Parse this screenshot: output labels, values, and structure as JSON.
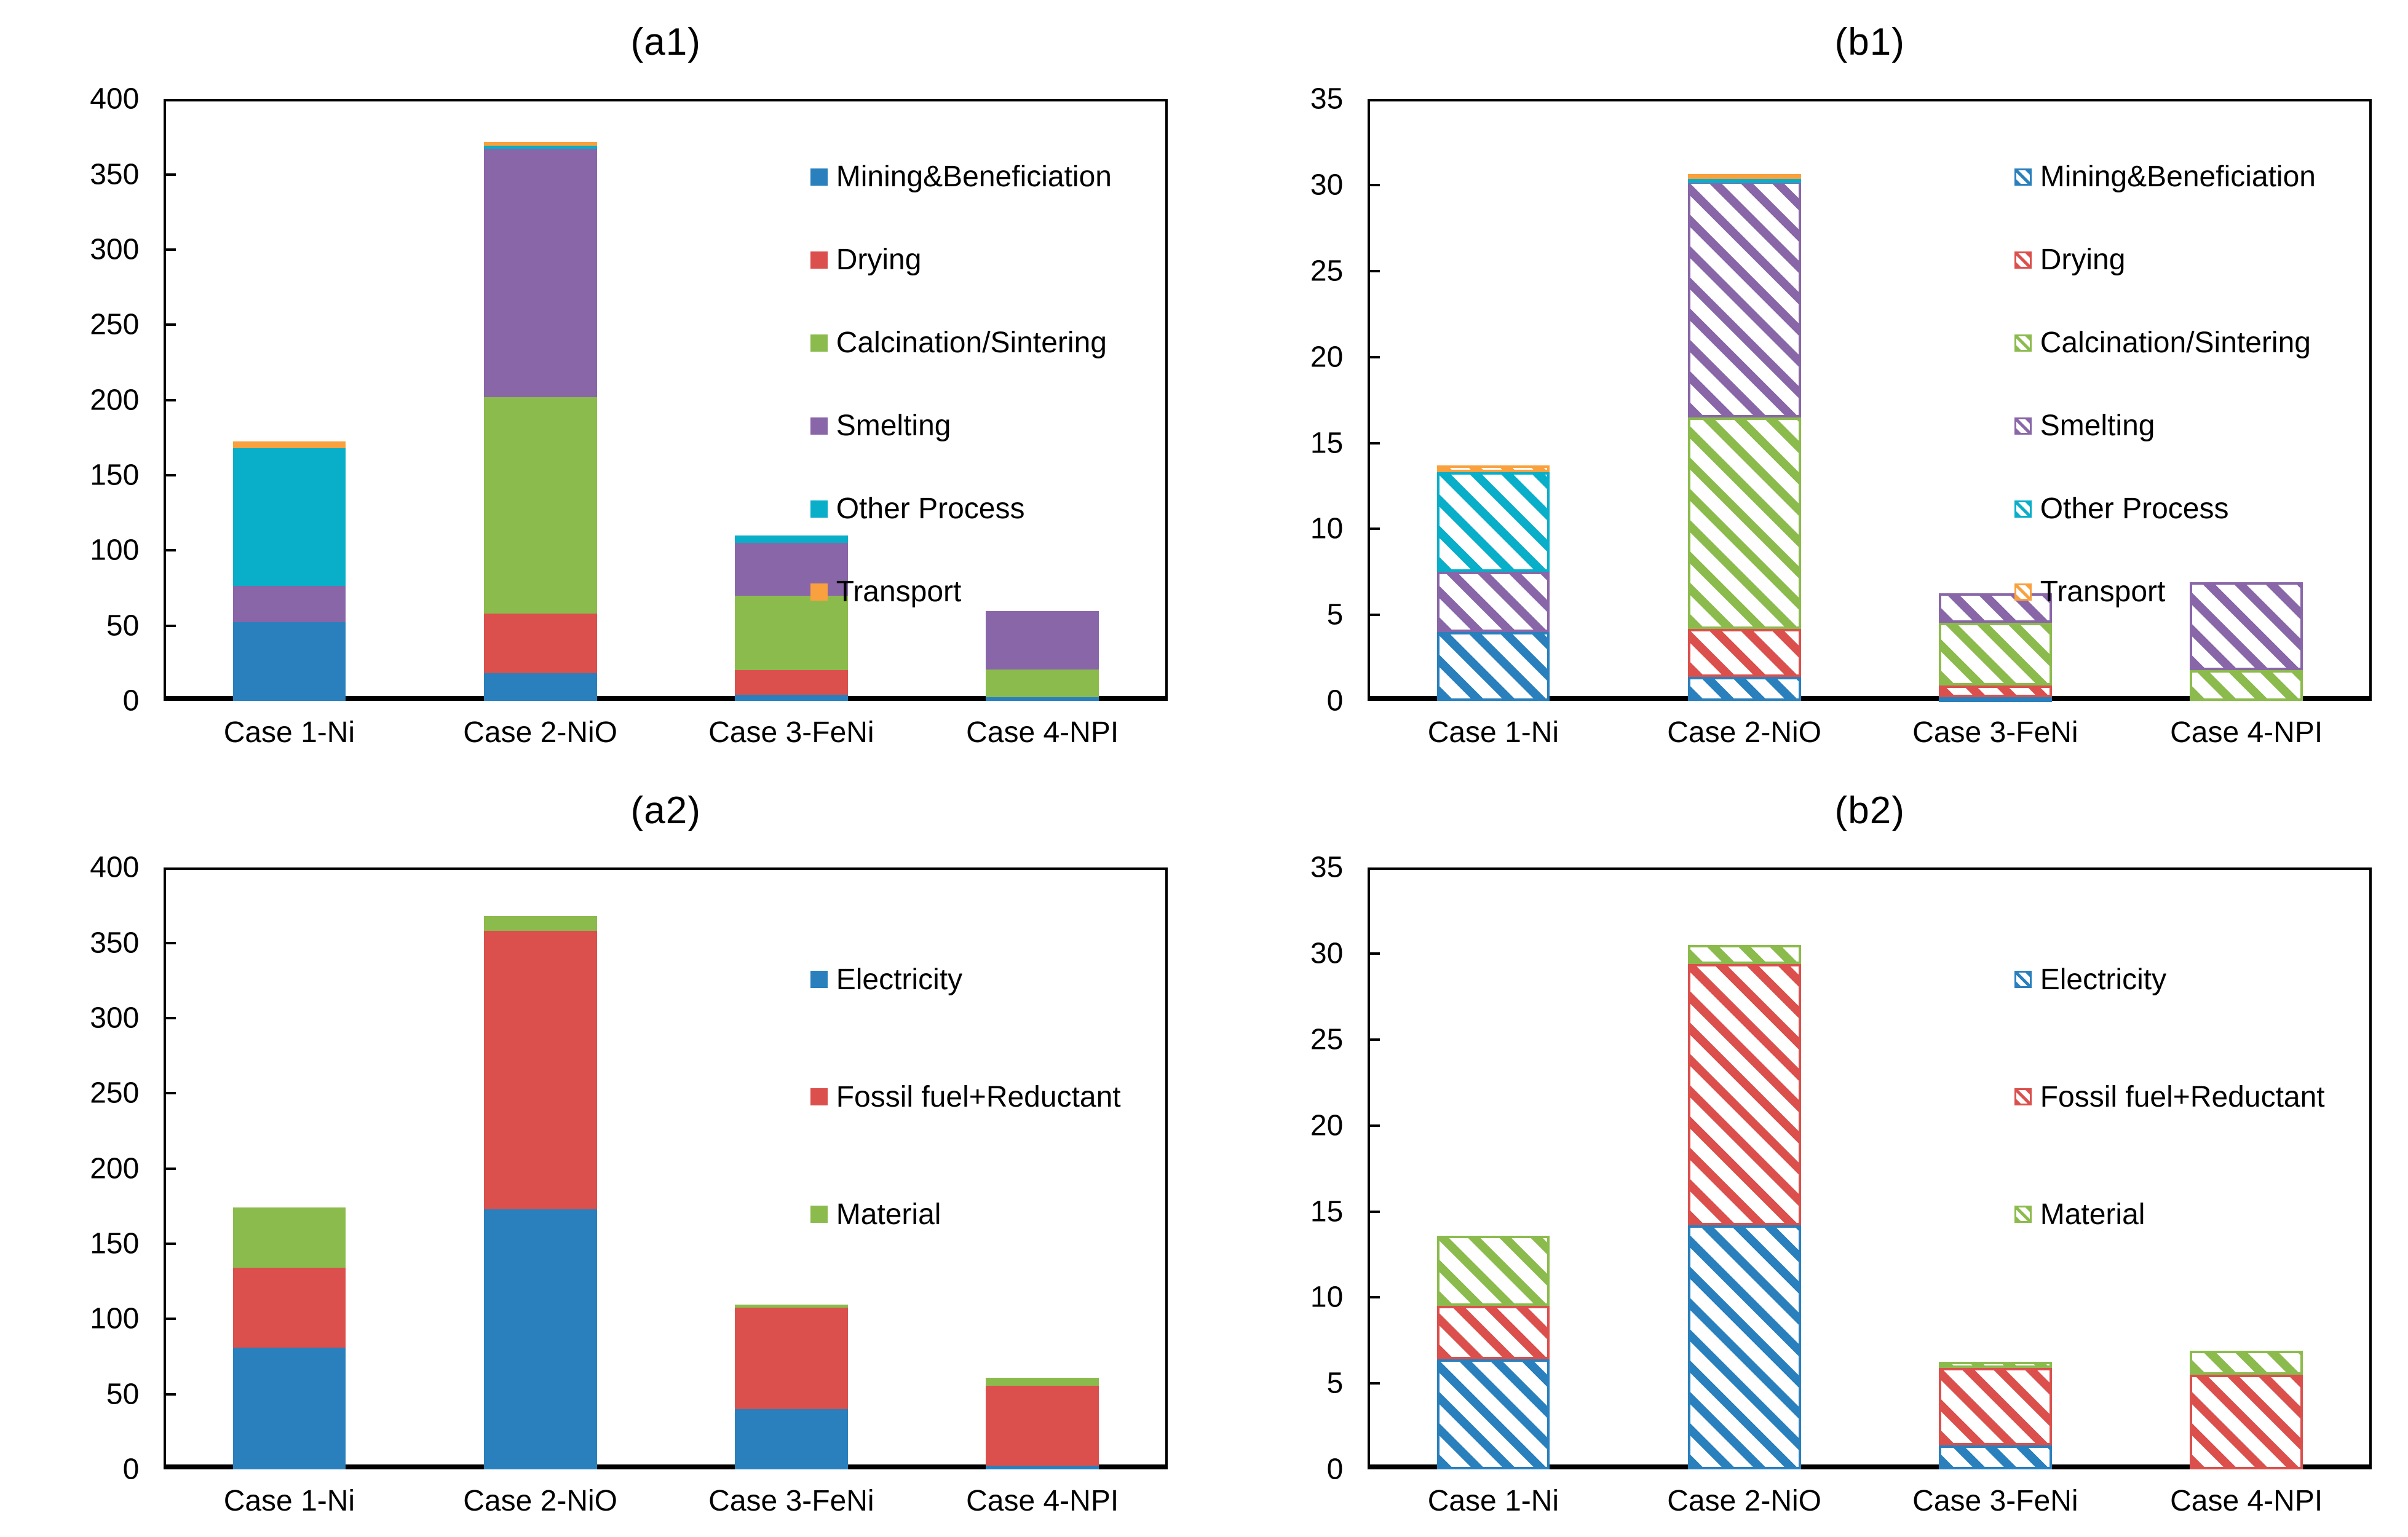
{
  "figure": {
    "description": "Four stacked bar charts comparing environmental impact of nickel production cases",
    "panel_titles": [
      "(a1)",
      "(b1)",
      "(a2)",
      "(b2)"
    ]
  },
  "colors": {
    "Mining&Beneficiation": "#2980BD",
    "Drying": "#DB504C",
    "Calcination/Sintering": "#8CBB4D",
    "Smelting": "#8966A8",
    "Other Process": "#09AEC9",
    "Transport": "#F8A13E",
    "Electricity": "#2980BD",
    "Fossil fuel+Reductant": "#DB504C",
    "Material": "#8CBB4D"
  },
  "chart_data": [
    {
      "id": "a1",
      "title": "(a1)",
      "type": "bar",
      "stacked": true,
      "hatched": false,
      "grid": false,
      "legend_position": "inside-top-right",
      "ylim": [
        0,
        400
      ],
      "yticks": [
        0,
        50,
        100,
        150,
        200,
        250,
        300,
        350,
        400
      ],
      "categories": [
        "Case 1-Ni",
        "Case 2-NiO",
        "Case 3-FeNi",
        "Case 4-NPI"
      ],
      "series": [
        {
          "name": "Mining&Beneficiation",
          "values": [
            52.5,
            18.5,
            4,
            2.5
          ]
        },
        {
          "name": "Drying",
          "values": [
            0,
            39.5,
            16.5,
            0
          ]
        },
        {
          "name": "Calcination/Sintering",
          "values": [
            0,
            144,
            49.5,
            18.5
          ]
        },
        {
          "name": "Smelting",
          "values": [
            24,
            165,
            35,
            38.5
          ]
        },
        {
          "name": "Other Process",
          "values": [
            91.5,
            2,
            5,
            0
          ]
        },
        {
          "name": "Transport",
          "values": [
            4.5,
            2.5,
            0,
            0
          ]
        }
      ]
    },
    {
      "id": "b1",
      "title": "(b1)",
      "type": "bar",
      "stacked": true,
      "hatched": true,
      "grid": false,
      "legend_position": "inside-top-right",
      "ylim": [
        0,
        35
      ],
      "yticks": [
        0,
        5,
        10,
        15,
        20,
        25,
        30,
        35
      ],
      "categories": [
        "Case 1-Ni",
        "Case 2-NiO",
        "Case 3-FeNi",
        "Case 4-NPI"
      ],
      "series": [
        {
          "name": "Mining&Beneficiation",
          "values": [
            4.0,
            1.4,
            0.2,
            0
          ]
        },
        {
          "name": "Drying",
          "values": [
            0,
            2.8,
            0.7,
            0
          ]
        },
        {
          "name": "Calcination/Sintering",
          "values": [
            0,
            12.3,
            3.65,
            1.8
          ]
        },
        {
          "name": "Smelting",
          "values": [
            3.5,
            13.7,
            1.7,
            5.1
          ]
        },
        {
          "name": "Other Process",
          "values": [
            5.8,
            0.2,
            0,
            0
          ]
        },
        {
          "name": "Transport",
          "values": [
            0.4,
            0.25,
            0,
            0
          ]
        }
      ]
    },
    {
      "id": "a2",
      "title": "(a2)",
      "type": "bar",
      "stacked": true,
      "hatched": false,
      "grid": false,
      "legend_position": "inside-top-right",
      "ylim": [
        0,
        400
      ],
      "yticks": [
        0,
        50,
        100,
        150,
        200,
        250,
        300,
        350,
        400
      ],
      "categories": [
        "Case 1-Ni",
        "Case 2-NiO",
        "Case 3-FeNi",
        "Case 4-NPI"
      ],
      "series": [
        {
          "name": "Electricity",
          "values": [
            81,
            173,
            40,
            2.5
          ]
        },
        {
          "name": "Fossil fuel+Reductant",
          "values": [
            53,
            185,
            67.5,
            53
          ]
        },
        {
          "name": "Material",
          "values": [
            40,
            10,
            2,
            5.5
          ]
        }
      ]
    },
    {
      "id": "b2",
      "title": "(b2)",
      "type": "bar",
      "stacked": true,
      "hatched": true,
      "grid": false,
      "legend_position": "inside-top-right",
      "ylim": [
        0,
        35
      ],
      "yticks": [
        0,
        5,
        10,
        15,
        20,
        25,
        30,
        35
      ],
      "categories": [
        "Case 1-Ni",
        "Case 2-NiO",
        "Case 3-FeNi",
        "Case 4-NPI"
      ],
      "series": [
        {
          "name": "Electricity",
          "values": [
            6.4,
            14.2,
            1.4,
            0
          ]
        },
        {
          "name": "Fossil fuel+Reductant",
          "values": [
            3.1,
            15.2,
            4.5,
            5.5
          ]
        },
        {
          "name": "Material",
          "values": [
            4.1,
            1.1,
            0.35,
            1.4
          ]
        }
      ]
    }
  ]
}
